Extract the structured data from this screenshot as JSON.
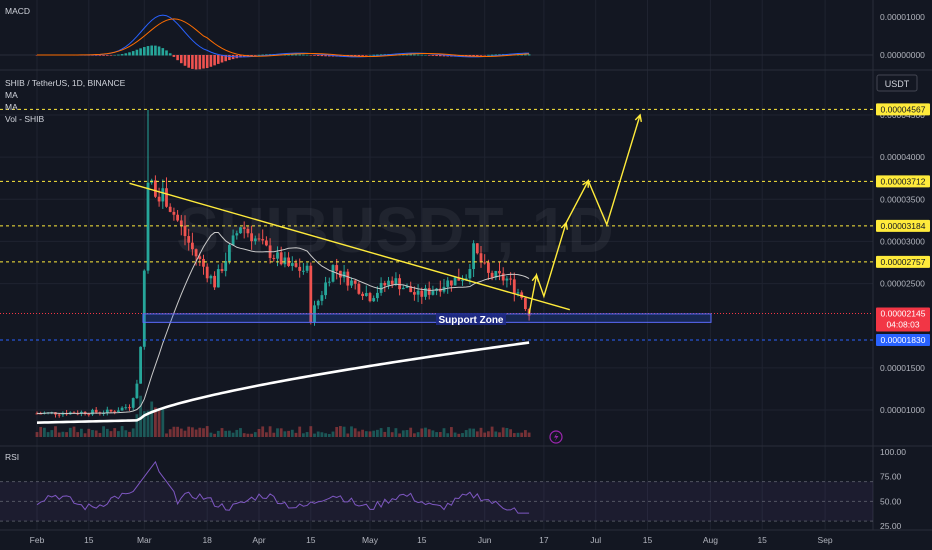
{
  "symbol_title": "SHIB / TetherUS, 1D, BINANCE",
  "indicator_labels": [
    "MA",
    "MA",
    "Vol - SHIB"
  ],
  "watermark": "SHIBUSDT, 1D",
  "currency_button": "USDT",
  "chart_data": [
    {
      "type": "bar",
      "title": "MACD",
      "y_ticks": [
        "0.00001000",
        "0.00000000"
      ]
    },
    {
      "type": "candlestick",
      "price_ticks": [
        "0.00004500",
        "0.00004000",
        "0.00003500",
        "0.00003000",
        "0.00002500",
        "0.00001500",
        "0.00001000"
      ],
      "price_levels": [
        {
          "label": "0.00004567",
          "value": 4.567e-05,
          "color": "#ffeb3b"
        },
        {
          "label": "0.00003712",
          "value": 3.712e-05,
          "color": "#ffeb3b"
        },
        {
          "label": "0.00003184",
          "value": 3.184e-05,
          "color": "#ffeb3b"
        },
        {
          "label": "0.00002757",
          "value": 2.757e-05,
          "color": "#ffeb3b"
        },
        {
          "label": "0.00001830",
          "value": 1.83e-05,
          "color": "#2962ff"
        }
      ],
      "current_price": {
        "label": "0.00002145",
        "countdown": "04:08:03",
        "color": "#f23645"
      },
      "support_zone": {
        "label": "Support Zone",
        "low": 2.04e-05,
        "high": 2.14e-05
      },
      "trendline": {
        "from": [
          "Feb 26",
          3.69e-05
        ],
        "to": [
          "Jun 24",
          2.19e-05
        ]
      },
      "projection": [
        [
          "Jun 13",
          2.14e-05
        ],
        [
          "Jun 15",
          2.6e-05
        ],
        [
          "Jun 17",
          2.35e-05
        ],
        [
          "Jun 23",
          3.22e-05
        ],
        [
          "Jun 29",
          3.72e-05
        ],
        [
          "Jul 4",
          3.2e-05
        ],
        [
          "Jul 13",
          4.5e-05
        ]
      ]
    },
    {
      "type": "line",
      "title": "RSI",
      "y_ticks": [
        "100.00",
        "75.00",
        "50.00",
        "25.00"
      ],
      "ylim": [
        0,
        100
      ]
    }
  ],
  "x_ticks": [
    "Feb",
    "15",
    "Mar",
    "18",
    "Apr",
    "15",
    "May",
    "15",
    "Jun",
    "17",
    "Jul",
    "15",
    "Aug",
    "15",
    "Sep"
  ]
}
